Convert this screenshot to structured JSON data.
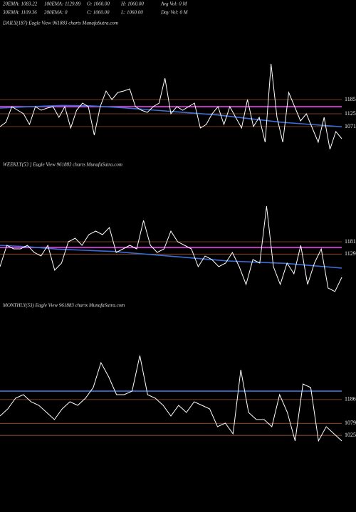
{
  "header": {
    "row1": [
      "20EMA: 1083.22",
      "100EMA: 1129.89",
      "O: 1060.00",
      "H: 1060.00",
      "Avg Vol: 0  M"
    ],
    "row2": [
      "30EMA: 1109.36",
      "200EMA: 0",
      "C: 1060.00",
      "L: 1060.00",
      "Day Vol: 0  M"
    ]
  },
  "chart_data": [
    {
      "type": "line",
      "title": "DAILY(187) Eagle  View  961883 charts MunafaSutra.com",
      "ylim": [
        960,
        1485
      ],
      "yticks": [
        1185,
        1125,
        1071
      ],
      "grid": true,
      "series": [
        {
          "color": "#ff44ff",
          "values": [
            1155,
            1155
          ]
        },
        {
          "color": "#3a6fd8",
          "values": [
            1149,
            1155,
            1160,
            1158,
            1150,
            1140,
            1130,
            1120,
            1105,
            1090,
            1080,
            1070
          ]
        },
        {
          "color": "#ffffff",
          "values": [
            1071,
            1089,
            1155,
            1140,
            1125,
            1080,
            1155,
            1140,
            1149,
            1155,
            1110,
            1155,
            1065,
            1140,
            1170,
            1155,
            1035,
            1155,
            1221,
            1185,
            1215,
            1221,
            1230,
            1155,
            1140,
            1131,
            1155,
            1170,
            1275,
            1125,
            1155,
            1140,
            1155,
            1170,
            1065,
            1080,
            1125,
            1155,
            1080,
            1155,
            1110,
            1065,
            1185,
            1071,
            1110,
            1005,
            1335,
            1110,
            1005,
            1215,
            1155,
            1095,
            1125,
            1065,
            1005,
            1110,
            975,
            1050,
            1020
          ]
        }
      ]
    },
    {
      "type": "line",
      "title": "WEEKLY(53               ] Eagle  View  961883 charts MunafaSutra.com",
      "ylim": [
        956,
        1481
      ],
      "yticks": [
        1181,
        1129
      ],
      "grid": true,
      "series": [
        {
          "color": "#ff44ff",
          "values": [
            1157,
            1157
          ]
        },
        {
          "color": "#3a6fd8",
          "values": [
            1166,
            1160,
            1150,
            1145,
            1140,
            1130,
            1120,
            1110,
            1100,
            1095,
            1090,
            1080,
            1070
          ]
        },
        {
          "color": "#ffffff",
          "values": [
            1076,
            1166,
            1151,
            1151,
            1166,
            1136,
            1121,
            1166,
            1061,
            1091,
            1181,
            1196,
            1166,
            1211,
            1226,
            1211,
            1241,
            1136,
            1151,
            1166,
            1151,
            1271,
            1166,
            1136,
            1151,
            1226,
            1181,
            1166,
            1151,
            1076,
            1121,
            1106,
            1076,
            1091,
            1136,
            1076,
            1001,
            1106,
            1091,
            1331,
            1076,
            1001,
            1091,
            1046,
            1166,
            1001,
            1091,
            1151,
            986,
            971,
            1031
          ]
        }
      ]
    },
    {
      "type": "line",
      "title": "MONTHLY(53) Eagle  View  961883 charts MunafaSutra.com",
      "ylim": [
        984,
        1576
      ],
      "yticks": [
        1186,
        1079,
        1025
      ],
      "grid": true,
      "series": [
        {
          "color": "#4a7fe8",
          "values": [
            1224,
            1224
          ]
        },
        {
          "color": "#ffffff",
          "values": [
            1112,
            1144,
            1192,
            1208,
            1176,
            1160,
            1128,
            1096,
            1144,
            1176,
            1160,
            1192,
            1240,
            1352,
            1288,
            1208,
            1208,
            1224,
            1384,
            1208,
            1192,
            1160,
            1112,
            1160,
            1128,
            1176,
            1160,
            1144,
            1064,
            1080,
            1032,
            1320,
            1128,
            1096,
            1096,
            1064,
            1208,
            1128,
            1000,
            1256,
            1240,
            1000,
            1064,
            1032,
            1000
          ]
        }
      ]
    }
  ]
}
